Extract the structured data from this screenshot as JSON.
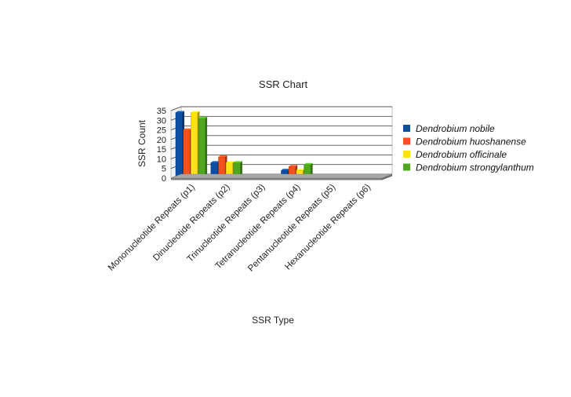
{
  "chart_data": {
    "type": "bar",
    "title": "SSR Chart",
    "xlabel": "SSR Type",
    "ylabel": "SSR Count",
    "ylim": [
      0,
      35
    ],
    "yticks": [
      0,
      5,
      10,
      15,
      20,
      25,
      30,
      35
    ],
    "grid": true,
    "legend_position": "right",
    "categories": [
      "Mononucleotide Repeats (p1)",
      "Dinucleotide Repeats (p2)",
      "Trinucleotide Repeats (p3)",
      "Tetranucleotide Repeats (p4)",
      "Pentanucleotide Repeats (p5)",
      "Hexanucleotide Repeats (p6)"
    ],
    "series": [
      {
        "name": "Dendrobium nobile",
        "color": "#0b4ea2",
        "values": [
          34,
          8,
          0,
          4,
          0,
          0
        ]
      },
      {
        "name": "Dendrobium huoshanense",
        "color": "#f4511e",
        "values": [
          25,
          11,
          0,
          6,
          0,
          0
        ]
      },
      {
        "name": "Dendrobium officinale",
        "color": "#ffe11a",
        "values": [
          34,
          8,
          0,
          4,
          0,
          0
        ]
      },
      {
        "name": "Dendrobium strongylanthum",
        "color": "#4ea71f",
        "values": [
          31,
          8,
          0,
          7,
          0,
          0
        ]
      }
    ]
  }
}
